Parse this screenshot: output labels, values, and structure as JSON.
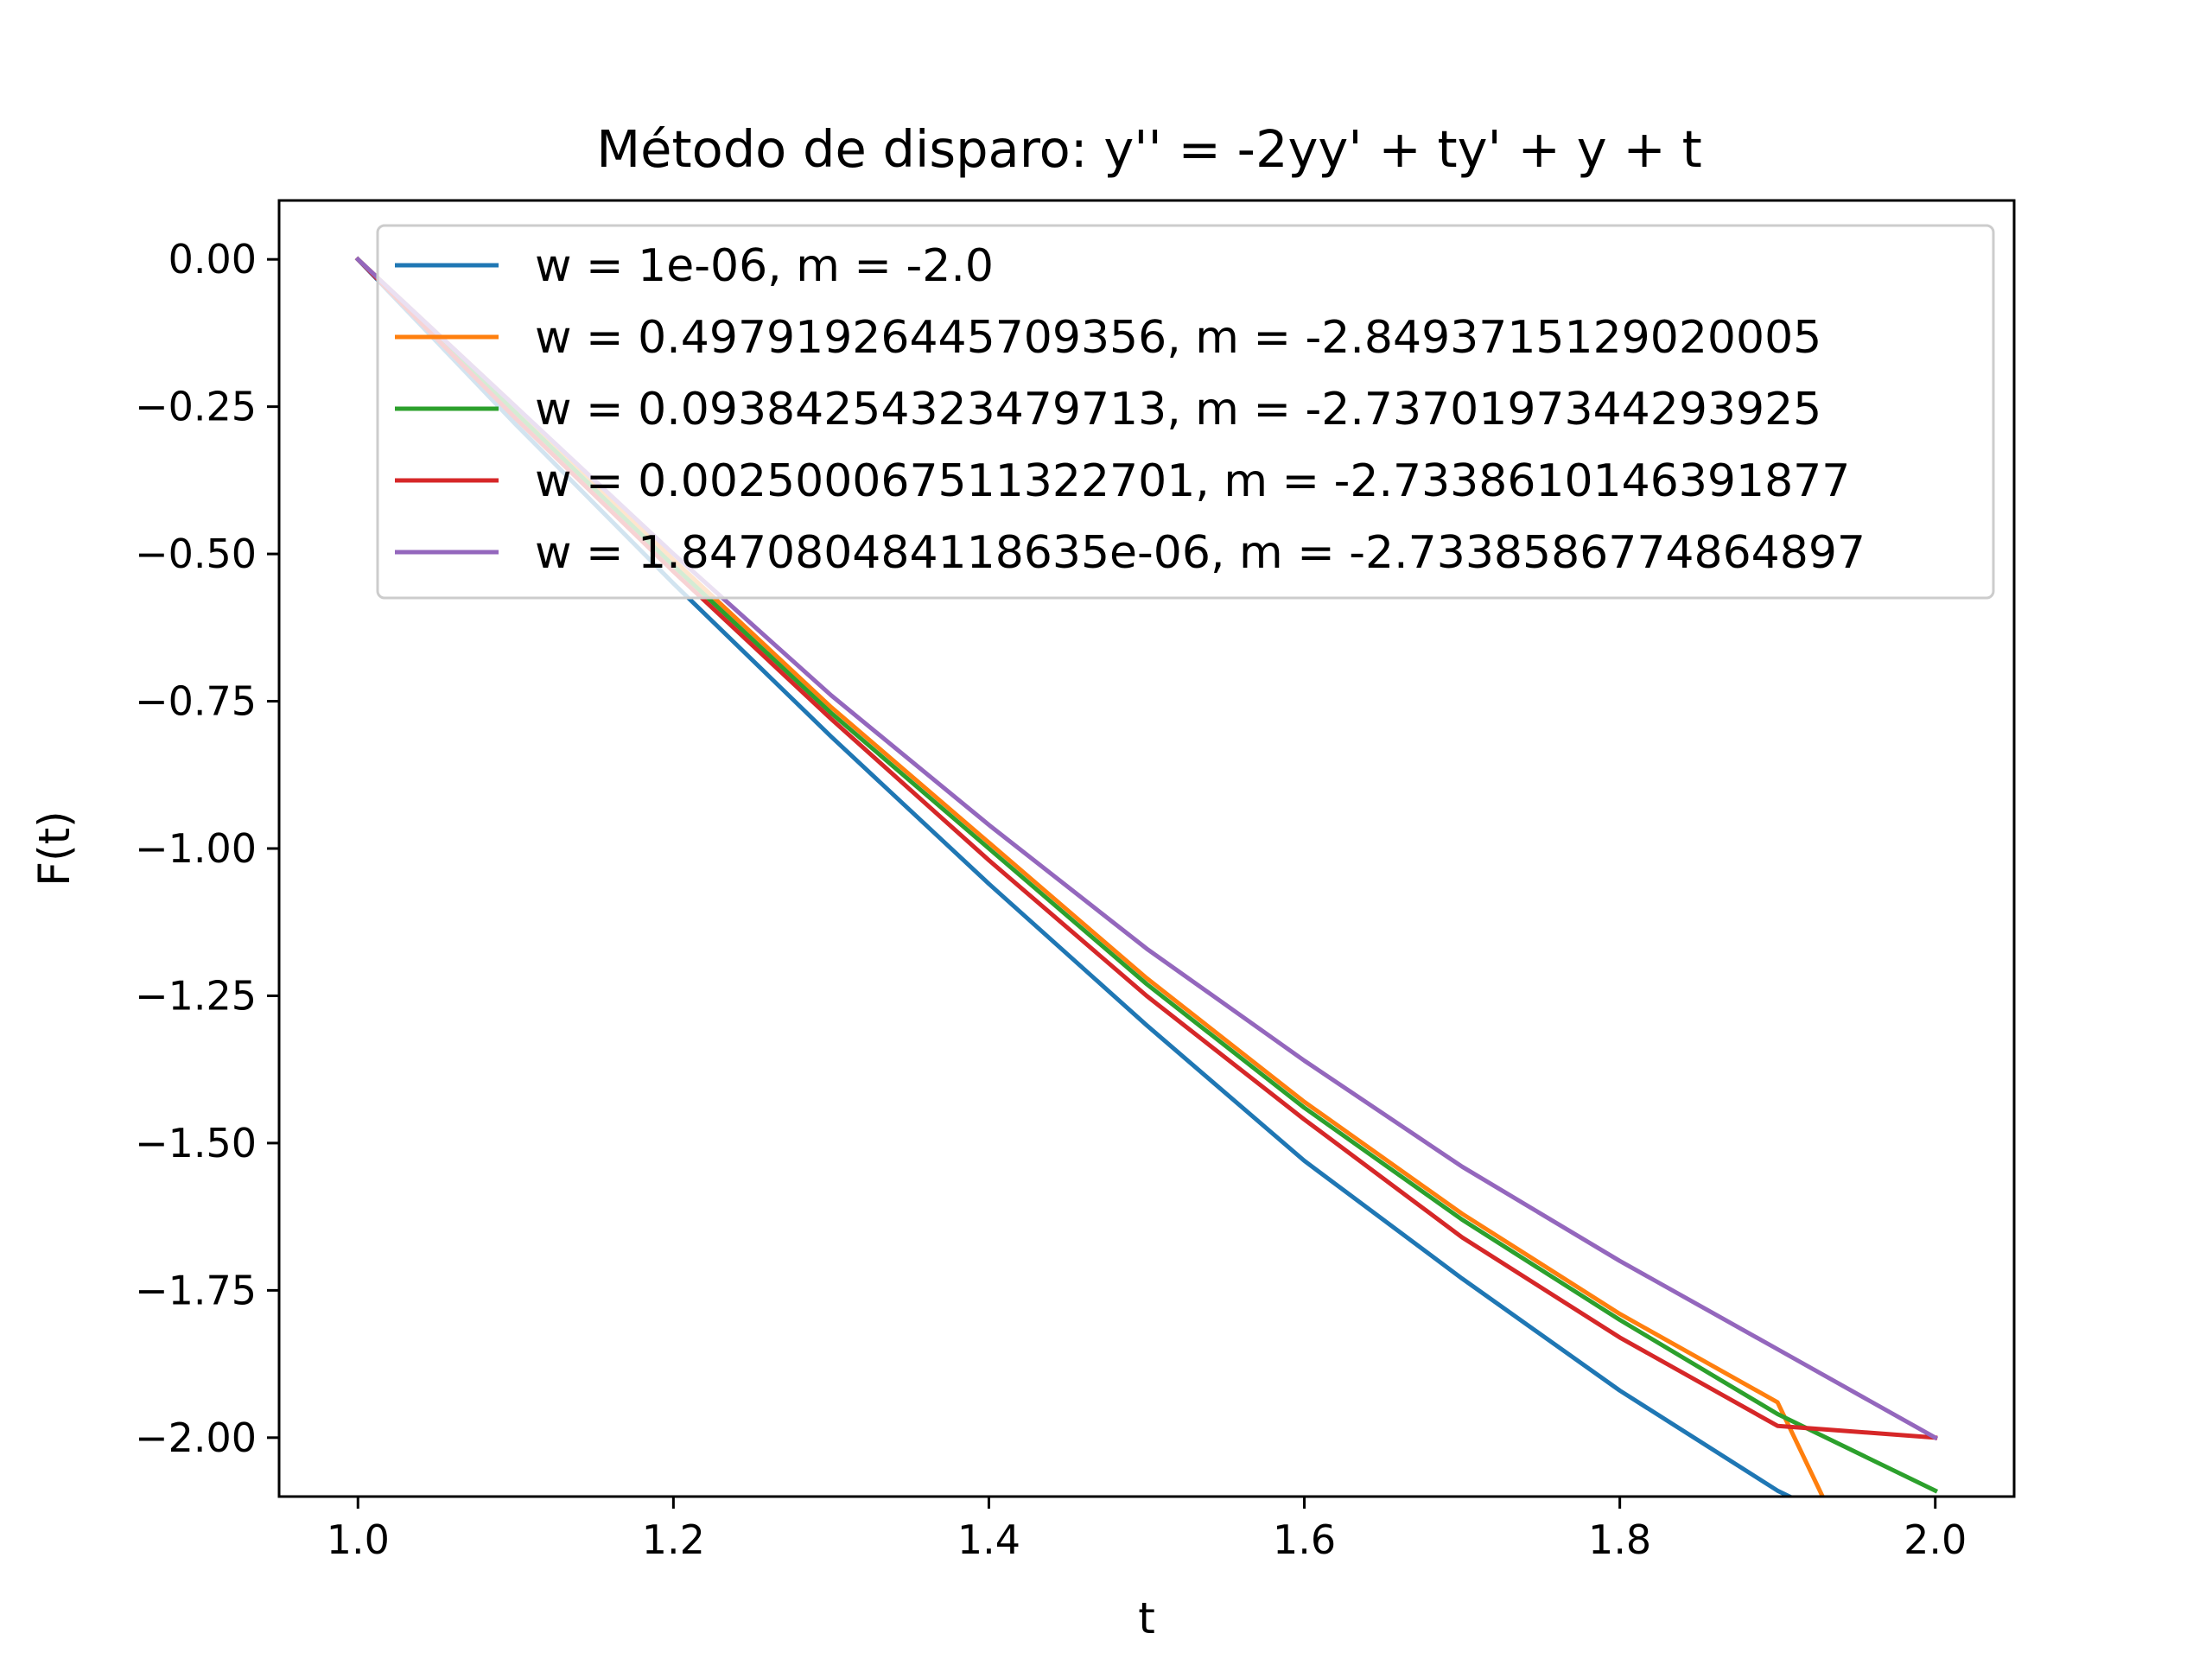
{
  "chart_data": {
    "type": "line",
    "title": "Método de disparo: y'' = -2yy' + ty' + y + t",
    "xlabel": "t",
    "ylabel": "F(t)",
    "xlim": [
      0.95,
      2.05
    ],
    "ylim": [
      -2.1,
      0.1
    ],
    "x_ticks": [
      1.0,
      1.2,
      1.4,
      1.6,
      1.8,
      2.0
    ],
    "x_tick_labels": [
      "1.0",
      "1.2",
      "1.4",
      "1.6",
      "1.8",
      "2.0"
    ],
    "y_ticks": [
      0.0,
      -0.25,
      -0.5,
      -0.75,
      -1.0,
      -1.25,
      -1.5,
      -1.75,
      -2.0
    ],
    "y_tick_labels": [
      "0.00",
      "−0.25",
      "−0.50",
      "−0.75",
      "−1.00",
      "−1.25",
      "−1.50",
      "−1.75",
      "−2.00"
    ],
    "grid": false,
    "legend_position": "top-right",
    "x": [
      1.0,
      1.1,
      1.2,
      1.3,
      1.4,
      1.5,
      1.6,
      1.7,
      1.8,
      1.9,
      2.0
    ],
    "series": [
      {
        "name": "w = 1e-06, m = -2.0",
        "color": "#1f77b4",
        "values": [
          0.0,
          -0.28,
          -0.55,
          -0.81,
          -1.06,
          -1.3,
          -1.53,
          -1.73,
          -1.92,
          -2.09,
          -2.22
        ]
      },
      {
        "name": "w = 0.49791926445709356, m = -2.8493715129020005",
        "color": "#ff7f0e",
        "values": [
          0.0,
          -0.25,
          -0.51,
          -0.76,
          -0.99,
          -1.22,
          -1.43,
          -1.62,
          -1.79,
          -1.94,
          -2.5
        ]
      },
      {
        "name": "w = 0.09384254323479713, m = -2.7370197344293925",
        "color": "#2ca02c",
        "values": [
          0.0,
          -0.26,
          -0.52,
          -0.77,
          -1.0,
          -1.23,
          -1.44,
          -1.63,
          -1.8,
          -1.96,
          -2.09
        ]
      },
      {
        "name": "w = 0.002500067511322701, m = -2.7338610146391877",
        "color": "#d62728",
        "values": [
          0.0,
          -0.27,
          -0.53,
          -0.78,
          -1.02,
          -1.25,
          -1.46,
          -1.66,
          -1.83,
          -1.98,
          -2.0
        ]
      },
      {
        "name": "w = 1.847080484118635e-06, m = -2.7338586774864897",
        "color": "#9467bd",
        "values": [
          0.0,
          -0.25,
          -0.5,
          -0.74,
          -0.96,
          -1.17,
          -1.36,
          -1.54,
          -1.7,
          -1.85,
          -2.0
        ]
      }
    ]
  }
}
